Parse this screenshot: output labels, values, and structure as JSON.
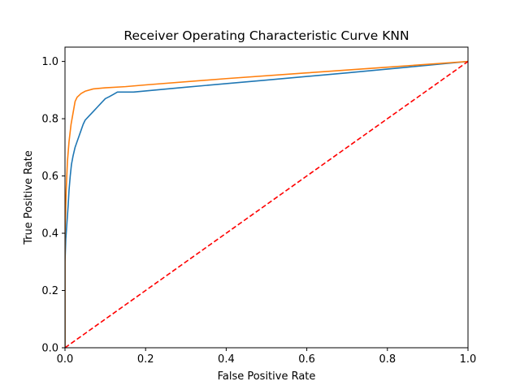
{
  "chart_data": {
    "type": "line",
    "title": "Receiver Operating Characteristic Curve KNN",
    "xlabel": "False Positive Rate",
    "ylabel": "True Positive Rate",
    "xlim": [
      0.0,
      1.0
    ],
    "ylim": [
      0.0,
      1.05
    ],
    "xticks": [
      0.0,
      0.2,
      0.4,
      0.6,
      0.8,
      1.0
    ],
    "yticks": [
      0.0,
      0.2,
      0.4,
      0.6,
      0.8,
      1.0
    ],
    "xtick_labels": [
      "0.0",
      "0.2",
      "0.4",
      "0.6",
      "0.8",
      "1.0"
    ],
    "ytick_labels": [
      "0.0",
      "0.2",
      "0.4",
      "0.6",
      "0.8",
      "1.0"
    ],
    "grid": false,
    "legend": "none",
    "series": [
      {
        "color": "#1f77b4",
        "style": "solid",
        "points": [
          [
            0.0,
            0.0
          ],
          [
            0.0,
            0.1
          ],
          [
            0.0,
            0.3
          ],
          [
            0.002,
            0.38
          ],
          [
            0.005,
            0.44
          ],
          [
            0.008,
            0.5
          ],
          [
            0.01,
            0.55
          ],
          [
            0.013,
            0.6
          ],
          [
            0.016,
            0.64
          ],
          [
            0.02,
            0.67
          ],
          [
            0.025,
            0.7
          ],
          [
            0.03,
            0.72
          ],
          [
            0.035,
            0.74
          ],
          [
            0.04,
            0.76
          ],
          [
            0.045,
            0.78
          ],
          [
            0.05,
            0.795
          ],
          [
            0.06,
            0.81
          ],
          [
            0.07,
            0.825
          ],
          [
            0.08,
            0.84
          ],
          [
            0.09,
            0.855
          ],
          [
            0.1,
            0.87
          ],
          [
            0.11,
            0.877
          ],
          [
            0.12,
            0.885
          ],
          [
            0.13,
            0.893
          ],
          [
            0.15,
            0.893
          ],
          [
            0.17,
            0.893
          ],
          [
            0.3,
            0.91
          ],
          [
            0.5,
            0.935
          ],
          [
            0.7,
            0.96
          ],
          [
            0.85,
            0.98
          ],
          [
            1.0,
            1.0
          ]
        ]
      },
      {
        "color": "#ff7f0e",
        "style": "solid",
        "points": [
          [
            0.0,
            0.0
          ],
          [
            0.0,
            0.4
          ],
          [
            0.003,
            0.55
          ],
          [
            0.006,
            0.65
          ],
          [
            0.01,
            0.72
          ],
          [
            0.015,
            0.78
          ],
          [
            0.02,
            0.82
          ],
          [
            0.025,
            0.86
          ],
          [
            0.03,
            0.875
          ],
          [
            0.04,
            0.888
          ],
          [
            0.05,
            0.896
          ],
          [
            0.07,
            0.904
          ],
          [
            0.1,
            0.908
          ],
          [
            0.15,
            0.912
          ],
          [
            0.2,
            0.918
          ],
          [
            0.4,
            0.94
          ],
          [
            0.6,
            0.96
          ],
          [
            0.8,
            0.98
          ],
          [
            1.0,
            1.0
          ]
        ]
      },
      {
        "color": "#ff0000",
        "style": "dashed",
        "points": [
          [
            0.0,
            0.0
          ],
          [
            1.0,
            1.0
          ]
        ]
      }
    ]
  }
}
